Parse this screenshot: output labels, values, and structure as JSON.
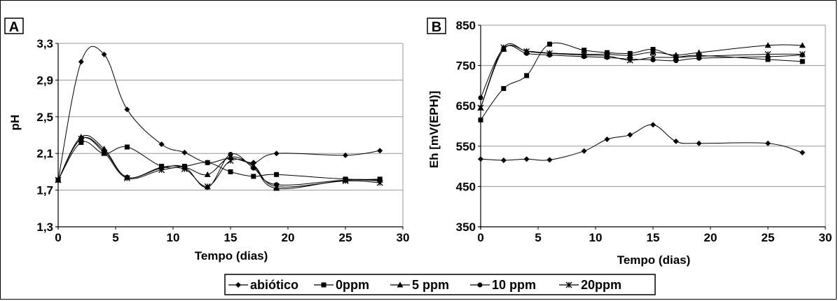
{
  "chart_data": [
    {
      "panel": "A",
      "type": "line",
      "ylabel": "pH",
      "xlabel": "Tempo (dias)",
      "xlim": [
        0,
        30
      ],
      "ylim": [
        1.3,
        3.3
      ],
      "xticks": [
        "0",
        "5",
        "10",
        "15",
        "20",
        "25",
        "30"
      ],
      "yticks": [
        "1,3",
        "1,7",
        "2,1",
        "2,5",
        "2,9",
        "3,3"
      ],
      "ytick_values": [
        1.3,
        1.7,
        2.1,
        2.5,
        2.9,
        3.3
      ],
      "grid": "horizontal",
      "x": [
        0,
        2,
        4,
        6,
        9,
        11,
        13,
        15,
        17,
        19,
        25,
        28
      ],
      "series": [
        {
          "name": "abiótico",
          "marker": "diamond",
          "values": [
            1.81,
            3.1,
            3.18,
            2.58,
            2.2,
            2.11,
            2.0,
            2.05,
            2.0,
            2.1,
            2.08,
            2.13
          ]
        },
        {
          "name": "0ppm",
          "marker": "square",
          "values": [
            1.81,
            2.22,
            2.1,
            2.17,
            1.96,
            1.96,
            2.0,
            1.9,
            1.85,
            1.87,
            1.82,
            1.82
          ]
        },
        {
          "name": "5 ppm",
          "marker": "triangle",
          "values": [
            1.81,
            2.28,
            2.15,
            1.84,
            1.95,
            1.95,
            1.87,
            2.06,
            1.96,
            1.72,
            1.81,
            1.81
          ]
        },
        {
          "name": "10 ppm",
          "marker": "circle",
          "values": [
            1.81,
            2.26,
            2.13,
            1.84,
            1.94,
            1.95,
            1.73,
            2.09,
            1.94,
            1.76,
            1.81,
            1.8
          ]
        },
        {
          "name": "20ppm",
          "marker": "x",
          "values": [
            1.81,
            2.26,
            2.11,
            1.83,
            1.92,
            1.93,
            1.74,
            2.02,
            1.97,
            1.74,
            1.8,
            1.78
          ]
        }
      ]
    },
    {
      "panel": "B",
      "type": "line",
      "ylabel": "Eh [mV(EPH)]",
      "xlabel": "Tempo (dias)",
      "xlim": [
        0,
        30
      ],
      "ylim": [
        350,
        850
      ],
      "xticks": [
        "0",
        "5",
        "10",
        "15",
        "20",
        "25",
        "30"
      ],
      "yticks": [
        "350",
        "450",
        "550",
        "650",
        "750",
        "850"
      ],
      "ytick_values": [
        350,
        450,
        550,
        650,
        750,
        850
      ],
      "grid": "horizontal",
      "x": [
        0,
        2,
        4,
        6,
        9,
        11,
        13,
        15,
        17,
        19,
        25,
        28
      ],
      "series": [
        {
          "name": "abiótico",
          "marker": "diamond",
          "values": [
            518,
            515,
            518,
            516,
            538,
            567,
            578,
            603,
            562,
            557,
            557,
            534
          ]
        },
        {
          "name": "0ppm",
          "marker": "square",
          "values": [
            615,
            693,
            725,
            803,
            788,
            782,
            780,
            790,
            772,
            775,
            765,
            760
          ]
        },
        {
          "name": "5 ppm",
          "marker": "triangle",
          "values": [
            645,
            790,
            786,
            781,
            778,
            778,
            775,
            783,
            776,
            782,
            800,
            800
          ]
        },
        {
          "name": "10 ppm",
          "marker": "circle",
          "values": [
            670,
            793,
            780,
            776,
            772,
            770,
            766,
            764,
            762,
            768,
            772,
            776
          ]
        },
        {
          "name": "20ppm",
          "marker": "x",
          "values": [
            645,
            795,
            785,
            780,
            776,
            774,
            763,
            770,
            770,
            773,
            778,
            778
          ]
        }
      ]
    }
  ],
  "legend": {
    "placement": "bottom-center",
    "items": [
      "abiótico",
      "0ppm",
      "5 ppm",
      "10 ppm",
      "20ppm"
    ]
  }
}
